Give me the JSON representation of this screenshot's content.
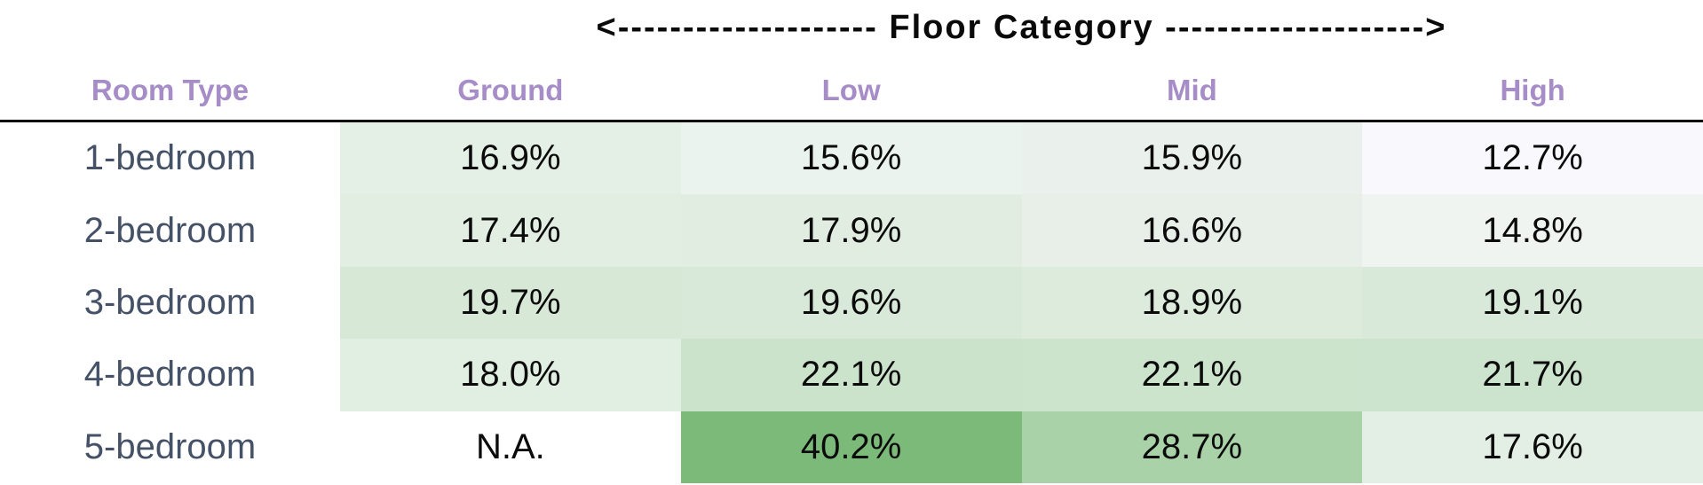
{
  "title": "<-------------------- Floor Category -------------------->",
  "header": {
    "room_type": "Room Type",
    "columns": [
      "Ground",
      "Low",
      "Mid",
      "High"
    ]
  },
  "rows": [
    {
      "label": "1-bedroom",
      "cells": [
        {
          "text": "16.9%",
          "bg": "#e4efe5"
        },
        {
          "text": "15.6%",
          "bg": "#ebf3ee"
        },
        {
          "text": "15.9%",
          "bg": "#eaf1ec"
        },
        {
          "text": "12.7%",
          "bg": "#f9f8fc"
        }
      ]
    },
    {
      "label": "2-bedroom",
      "cells": [
        {
          "text": "17.4%",
          "bg": "#e2eee2"
        },
        {
          "text": "17.9%",
          "bg": "#e1ede1"
        },
        {
          "text": "16.6%",
          "bg": "#e7efe8"
        },
        {
          "text": "14.8%",
          "bg": "#eff4f1"
        }
      ]
    },
    {
      "label": "3-bedroom",
      "cells": [
        {
          "text": "19.7%",
          "bg": "#d8e8d7"
        },
        {
          "text": "19.6%",
          "bg": "#d9e9d9"
        },
        {
          "text": "18.9%",
          "bg": "#dcebdc"
        },
        {
          "text": "19.1%",
          "bg": "#d9e9d9"
        }
      ]
    },
    {
      "label": "4-bedroom",
      "cells": [
        {
          "text": "18.0%",
          "bg": "#e1eee2"
        },
        {
          "text": "22.1%",
          "bg": "#cbe2cb"
        },
        {
          "text": "22.1%",
          "bg": "#cce3cc"
        },
        {
          "text": "21.7%",
          "bg": "#cce3cd"
        }
      ]
    },
    {
      "label": "5-bedroom",
      "cells": [
        {
          "text": "N.A.",
          "bg": "#ffffff"
        },
        {
          "text": "40.2%",
          "bg": "#7cba79"
        },
        {
          "text": "28.7%",
          "bg": "#aad2a8"
        },
        {
          "text": "17.6%",
          "bg": "#e3eee4"
        }
      ]
    }
  ],
  "colors": {
    "header_text": "#a78dc8",
    "row_label_text": "#455166",
    "cell_text": "#0b0b0b",
    "title_text": "#0a0a0a",
    "separator_line": "#000000",
    "background": "#ffffff",
    "heat_low": "#f9f8fc",
    "heat_high": "#7cba79"
  },
  "chart_data": {
    "type": "heatmap",
    "title": "Floor Category",
    "xlabel": "Floor Category",
    "ylabel": "Room Type",
    "x_categories": [
      "Ground",
      "Low",
      "Mid",
      "High"
    ],
    "y_categories": [
      "1-bedroom",
      "2-bedroom",
      "3-bedroom",
      "4-bedroom",
      "5-bedroom"
    ],
    "values": [
      [
        16.9,
        15.6,
        15.9,
        12.7
      ],
      [
        17.4,
        17.9,
        16.6,
        14.8
      ],
      [
        19.7,
        19.6,
        18.9,
        19.1
      ],
      [
        18.0,
        22.1,
        22.1,
        21.7
      ],
      [
        null,
        40.2,
        28.7,
        17.6
      ]
    ],
    "unit": "%",
    "na_text": "N.A.",
    "value_range": [
      12.7,
      40.2
    ],
    "legend_position": "none",
    "grid": false,
    "color_scale": "white-to-green, higher value = darker green"
  }
}
